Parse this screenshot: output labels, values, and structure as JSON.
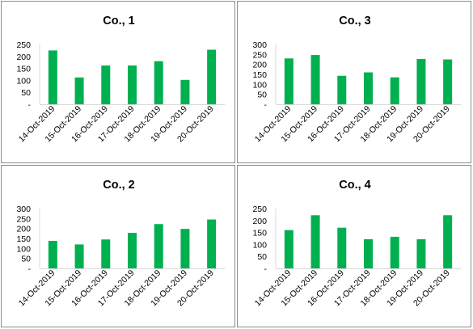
{
  "chart_data": [
    {
      "type": "bar",
      "title": "Co., 1",
      "categories": [
        "14-Oct-2019",
        "15-Oct-2019",
        "16-Oct-2019",
        "17-Oct-2019",
        "18-Oct-2019",
        "19-Oct-2019",
        "20-Oct-2019"
      ],
      "values": [
        225,
        112,
        162,
        162,
        180,
        102,
        228
      ],
      "ylim": [
        0,
        250
      ],
      "yticks": [
        0,
        50,
        100,
        150,
        200,
        250
      ],
      "ytick_labels": [
        "-",
        "50",
        "100",
        "150",
        "200",
        "250"
      ],
      "bar_color": "#00b050",
      "grid": false
    },
    {
      "type": "bar",
      "title": "Co., 3",
      "categories": [
        "14-Oct-2019",
        "15-Oct-2019",
        "16-Oct-2019",
        "17-Oct-2019",
        "18-Oct-2019",
        "19-Oct-2019",
        "20-Oct-2019"
      ],
      "values": [
        230,
        247,
        143,
        160,
        135,
        227,
        225
      ],
      "ylim": [
        0,
        300
      ],
      "yticks": [
        0,
        50,
        100,
        150,
        200,
        250,
        300
      ],
      "ytick_labels": [
        "-",
        "50",
        "100",
        "150",
        "200",
        "250",
        "300"
      ],
      "bar_color": "#00b050",
      "grid": false
    },
    {
      "type": "bar",
      "title": "Co., 2",
      "categories": [
        "14-Oct-2019",
        "15-Oct-2019",
        "16-Oct-2019",
        "17-Oct-2019",
        "18-Oct-2019",
        "19-Oct-2019",
        "20-Oct-2019"
      ],
      "values": [
        138,
        120,
        145,
        178,
        222,
        198,
        245
      ],
      "ylim": [
        0,
        300
      ],
      "yticks": [
        0,
        50,
        100,
        150,
        200,
        250,
        300
      ],
      "ytick_labels": [
        "-",
        "50",
        "100",
        "150",
        "200",
        "250",
        "300"
      ],
      "bar_color": "#00b050",
      "grid": false
    },
    {
      "type": "bar",
      "title": "Co., 4",
      "categories": [
        "14-Oct-2019",
        "15-Oct-2019",
        "16-Oct-2019",
        "17-Oct-2019",
        "18-Oct-2019",
        "19-Oct-2019",
        "20-Oct-2019"
      ],
      "values": [
        160,
        222,
        170,
        122,
        132,
        122,
        222
      ],
      "ylim": [
        0,
        250
      ],
      "yticks": [
        0,
        50,
        100,
        150,
        200,
        250
      ],
      "ytick_labels": [
        "-",
        "50",
        "100",
        "150",
        "200",
        "250"
      ],
      "bar_color": "#00b050",
      "grid": false
    }
  ]
}
